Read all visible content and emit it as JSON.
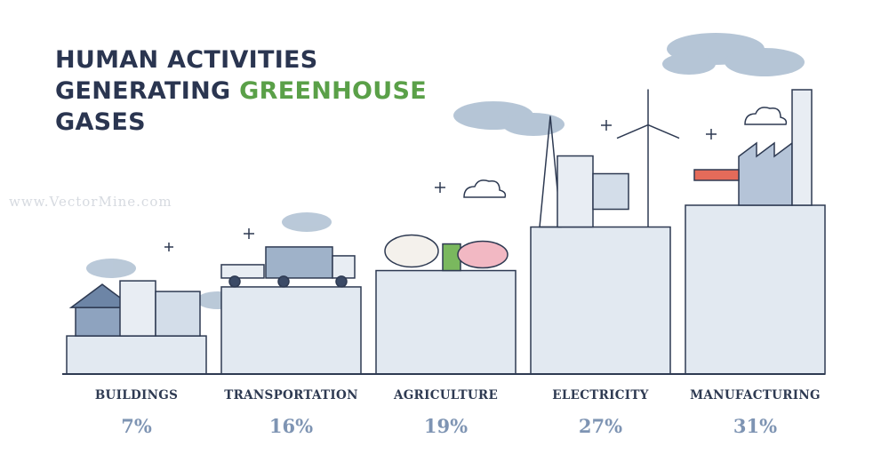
{
  "title": {
    "line1": "HUMAN ACTIVITIES",
    "line2_part1": "GENERATING ",
    "line2_accent": "GREENHOUSE",
    "line3": "GASES"
  },
  "watermark": "www.VectorMine.com",
  "colors": {
    "title": "#2a3550",
    "accent": "#5aa048",
    "bar_fill": "#e2e9f1",
    "bar_stroke": "#2e3a52",
    "value_text": "#7e94b3"
  },
  "chart_data": {
    "type": "bar",
    "title": "HUMAN ACTIVITIES GENERATING GREENHOUSE GASES",
    "categories": [
      "BUILDINGS",
      "TRANSPORTATION",
      "AGRICULTURE",
      "ELECTRICITY",
      "MANUFACTURING"
    ],
    "values": [
      7,
      16,
      19,
      27,
      31
    ],
    "value_labels": [
      "7%",
      "16%",
      "19%",
      "27%",
      "31%"
    ],
    "ylim": [
      0,
      31
    ],
    "grid": false,
    "legend": "none"
  }
}
